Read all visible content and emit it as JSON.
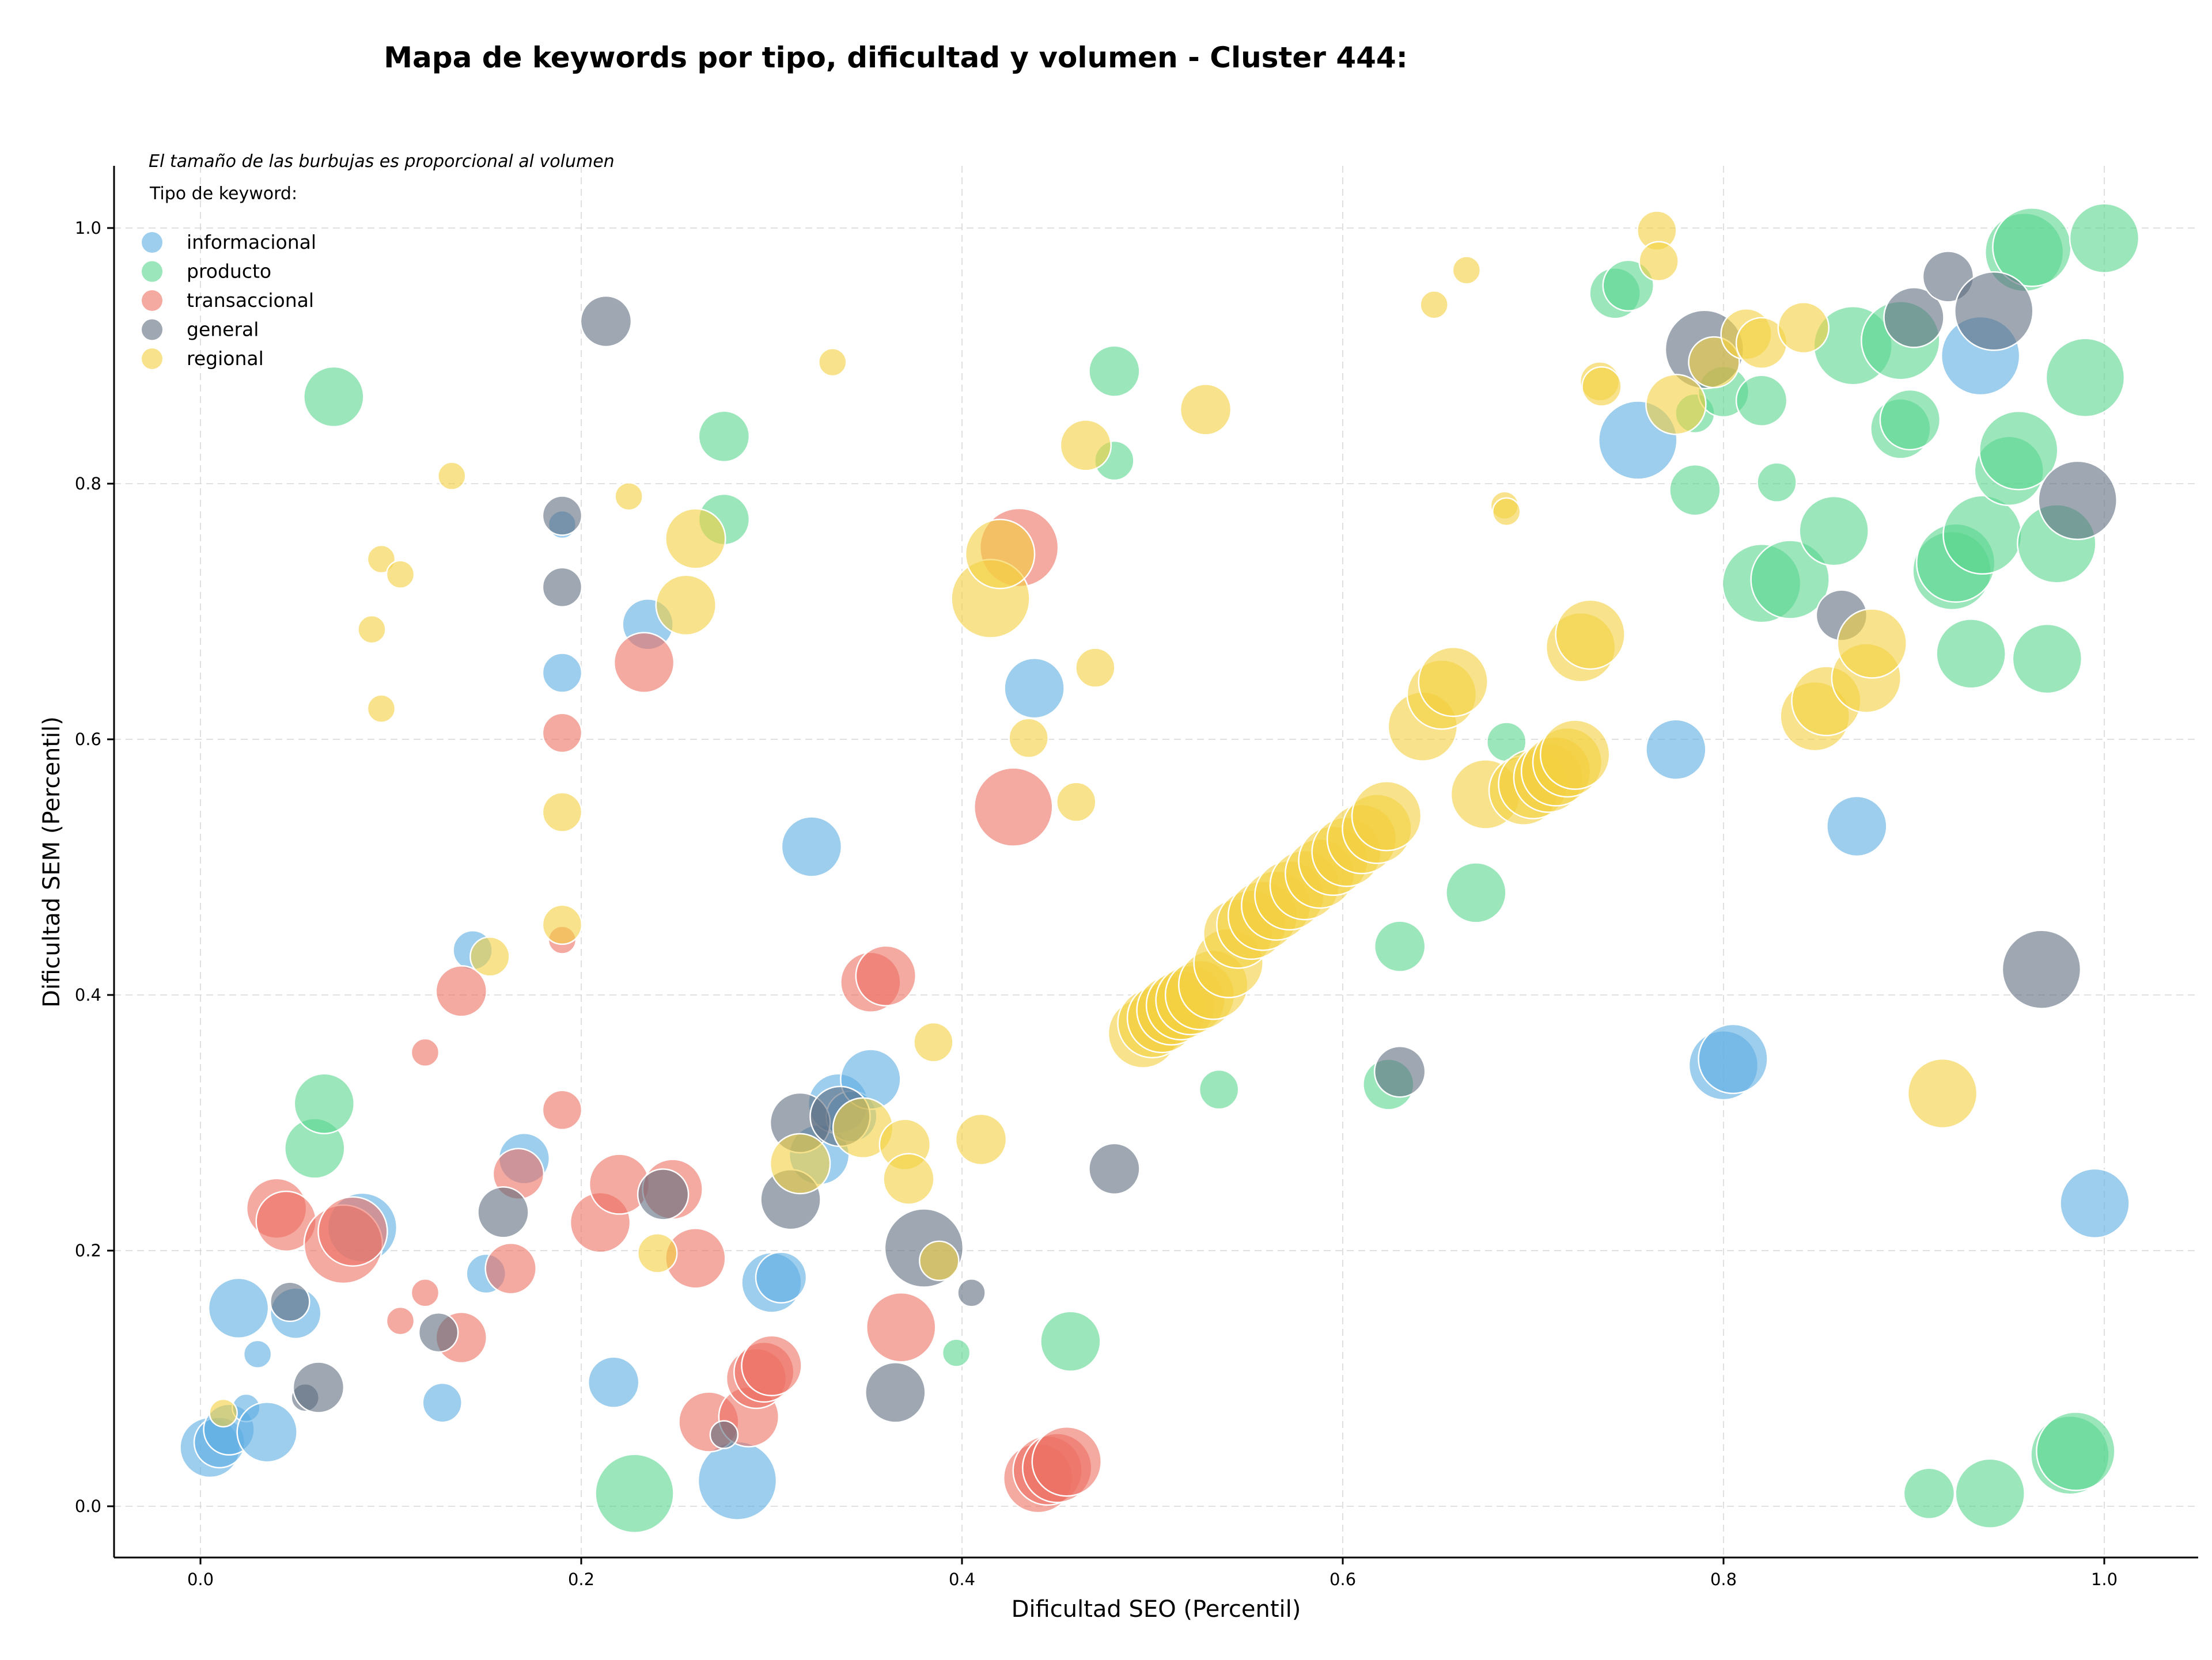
{
  "chart_data": {
    "type": "scatter",
    "title": "Mapa de keywords por tipo, dificultad y volumen - Cluster 444:",
    "xlabel": "Dificultad SEO (Percentil)",
    "ylabel": "Dificultad SEM (Percentil)",
    "xlim": [
      -0.045,
      1.05
    ],
    "ylim": [
      -0.04,
      1.05
    ],
    "x_ticks": [
      "0.0",
      "0.2",
      "0.4",
      "0.6",
      "0.8",
      "1.0"
    ],
    "x_tick_values": [
      0,
      0.2,
      0.4,
      0.6,
      0.8,
      1.0
    ],
    "y_ticks": [
      "0.0",
      "0.2",
      "0.4",
      "0.6",
      "0.8",
      "1.0"
    ],
    "y_tick_values": [
      0,
      0.2,
      0.4,
      0.6,
      0.8,
      1.0
    ],
    "grid": true,
    "legend_placement": "top-left",
    "legend_note": "El tamaño de las burbujas es proporcional al volumen",
    "legend_title": "Tipo de keyword:",
    "series": [
      {
        "name": "informacional",
        "color": "#5DADE2",
        "points": [
          [
            0.005,
            0.046,
            4
          ],
          [
            0.01,
            0.05,
            3
          ],
          [
            0.015,
            0.06,
            3
          ],
          [
            0.02,
            0.155,
            4
          ],
          [
            0.024,
            0.077,
            1
          ],
          [
            0.03,
            0.119,
            1
          ],
          [
            0.035,
            0.058,
            4
          ],
          [
            0.05,
            0.151,
            3
          ],
          [
            0.085,
            0.218,
            5
          ],
          [
            0.127,
            0.081,
            2
          ],
          [
            0.143,
            0.435,
            2
          ],
          [
            0.15,
            0.182,
            2
          ],
          [
            0.17,
            0.272,
            3
          ],
          [
            0.19,
            0.768,
            1
          ],
          [
            0.19,
            0.652,
            2
          ],
          [
            0.217,
            0.097,
            3
          ],
          [
            0.235,
            0.69,
            3
          ],
          [
            0.282,
            0.02,
            6
          ],
          [
            0.3,
            0.175,
            4
          ],
          [
            0.305,
            0.179,
            3
          ],
          [
            0.321,
            0.516,
            4
          ],
          [
            0.325,
            0.275,
            4
          ],
          [
            0.335,
            0.315,
            4
          ],
          [
            0.342,
            0.305,
            3
          ],
          [
            0.352,
            0.334,
            4
          ],
          [
            0.438,
            0.64,
            4
          ],
          [
            0.755,
            0.834,
            6
          ],
          [
            0.775,
            0.592,
            4
          ],
          [
            0.8,
            0.345,
            5
          ],
          [
            0.805,
            0.35,
            5
          ],
          [
            0.87,
            0.532,
            4
          ],
          [
            0.935,
            0.9,
            6
          ],
          [
            0.995,
            0.237,
            5
          ]
        ]
      },
      {
        "name": "producto",
        "color": "#58D68D",
        "points": [
          [
            0.06,
            0.28,
            4
          ],
          [
            0.065,
            0.315,
            4
          ],
          [
            0.07,
            0.868,
            4
          ],
          [
            0.228,
            0.01,
            6
          ],
          [
            0.275,
            0.837,
            3
          ],
          [
            0.275,
            0.772,
            3
          ],
          [
            0.397,
            0.12,
            1
          ],
          [
            0.457,
            0.129,
            4
          ],
          [
            0.48,
            0.888,
            3
          ],
          [
            0.48,
            0.818,
            2
          ],
          [
            0.535,
            0.326,
            2
          ],
          [
            0.624,
            0.33,
            3
          ],
          [
            0.63,
            0.438,
            3
          ],
          [
            0.67,
            0.48,
            4
          ],
          [
            0.686,
            0.598,
            2
          ],
          [
            0.743,
            0.949,
            3
          ],
          [
            0.75,
            0.955,
            3
          ],
          [
            0.785,
            0.795,
            3
          ],
          [
            0.785,
            0.855,
            2
          ],
          [
            0.8,
            0.872,
            3
          ],
          [
            0.82,
            0.865,
            3
          ],
          [
            0.82,
            0.722,
            6
          ],
          [
            0.828,
            0.801,
            2
          ],
          [
            0.835,
            0.725,
            6
          ],
          [
            0.858,
            0.763,
            5
          ],
          [
            0.868,
            0.908,
            6
          ],
          [
            0.893,
            0.843,
            4
          ],
          [
            0.898,
            0.85,
            4
          ],
          [
            0.893,
            0.912,
            6
          ],
          [
            0.908,
            0.01,
            3
          ],
          [
            0.92,
            0.732,
            6
          ],
          [
            0.922,
            0.738,
            6
          ],
          [
            0.93,
            0.667,
            5
          ],
          [
            0.936,
            0.76,
            6
          ],
          [
            0.94,
            0.01,
            5
          ],
          [
            0.95,
            0.81,
            5
          ],
          [
            0.955,
            0.826,
            6
          ],
          [
            0.958,
            0.981,
            6
          ],
          [
            0.962,
            0.985,
            6
          ],
          [
            0.97,
            0.663,
            5
          ],
          [
            0.975,
            0.753,
            6
          ],
          [
            0.982,
            0.04,
            6
          ],
          [
            0.985,
            0.043,
            6
          ],
          [
            0.99,
            0.883,
            6
          ],
          [
            1.0,
            0.992,
            5
          ]
        ]
      },
      {
        "name": "transaccional",
        "color": "#EC7063",
        "points": [
          [
            0.04,
            0.233,
            4
          ],
          [
            0.045,
            0.223,
            4
          ],
          [
            0.075,
            0.205,
            6
          ],
          [
            0.08,
            0.215,
            5
          ],
          [
            0.105,
            0.145,
            1
          ],
          [
            0.118,
            0.355,
            1
          ],
          [
            0.118,
            0.167,
            1
          ],
          [
            0.137,
            0.132,
            3
          ],
          [
            0.137,
            0.403,
            3
          ],
          [
            0.163,
            0.186,
            3
          ],
          [
            0.167,
            0.26,
            3
          ],
          [
            0.19,
            0.605,
            2
          ],
          [
            0.19,
            0.443,
            1
          ],
          [
            0.19,
            0.31,
            2
          ],
          [
            0.21,
            0.222,
            4
          ],
          [
            0.22,
            0.252,
            4
          ],
          [
            0.233,
            0.66,
            4
          ],
          [
            0.248,
            0.248,
            4
          ],
          [
            0.26,
            0.194,
            4
          ],
          [
            0.267,
            0.066,
            4
          ],
          [
            0.288,
            0.07,
            4
          ],
          [
            0.292,
            0.1,
            4
          ],
          [
            0.296,
            0.105,
            4
          ],
          [
            0.3,
            0.11,
            4
          ],
          [
            0.352,
            0.41,
            4
          ],
          [
            0.36,
            0.415,
            4
          ],
          [
            0.368,
            0.14,
            5
          ],
          [
            0.427,
            0.547,
            6
          ],
          [
            0.43,
            0.75,
            6
          ],
          [
            0.44,
            0.022,
            5
          ],
          [
            0.445,
            0.028,
            5
          ],
          [
            0.45,
            0.03,
            5
          ],
          [
            0.455,
            0.035,
            5
          ]
        ]
      },
      {
        "name": "general",
        "color": "#5D6D7E",
        "points": [
          [
            0.047,
            0.16,
            2
          ],
          [
            0.055,
            0.085,
            1
          ],
          [
            0.062,
            0.093,
            3
          ],
          [
            0.125,
            0.136,
            2
          ],
          [
            0.159,
            0.23,
            3
          ],
          [
            0.19,
            0.775,
            2
          ],
          [
            0.19,
            0.719,
            2
          ],
          [
            0.213,
            0.927,
            3
          ],
          [
            0.243,
            0.244,
            3
          ],
          [
            0.275,
            0.056,
            1
          ],
          [
            0.31,
            0.24,
            4
          ],
          [
            0.315,
            0.3,
            4
          ],
          [
            0.336,
            0.305,
            4
          ],
          [
            0.365,
            0.089,
            4
          ],
          [
            0.38,
            0.202,
            6
          ],
          [
            0.405,
            0.167,
            1
          ],
          [
            0.48,
            0.264,
            3
          ],
          [
            0.63,
            0.34,
            3
          ],
          [
            0.79,
            0.905,
            6
          ],
          [
            0.862,
            0.697,
            3
          ],
          [
            0.9,
            0.93,
            4
          ],
          [
            0.918,
            0.962,
            3
          ],
          [
            0.942,
            0.935,
            6
          ],
          [
            0.967,
            0.42,
            6
          ],
          [
            0.986,
            0.787,
            6
          ]
        ]
      },
      {
        "name": "regional",
        "color": "#F4D03F",
        "points": [
          [
            0.012,
            0.073,
            1
          ],
          [
            0.09,
            0.686,
            1
          ],
          [
            0.095,
            0.741,
            1
          ],
          [
            0.095,
            0.624,
            1
          ],
          [
            0.105,
            0.729,
            1
          ],
          [
            0.132,
            0.806,
            1
          ],
          [
            0.152,
            0.43,
            2
          ],
          [
            0.19,
            0.543,
            2
          ],
          [
            0.19,
            0.455,
            2
          ],
          [
            0.225,
            0.79,
            1
          ],
          [
            0.24,
            0.198,
            2
          ],
          [
            0.255,
            0.705,
            4
          ],
          [
            0.26,
            0.757,
            4
          ],
          [
            0.315,
            0.268,
            4
          ],
          [
            0.332,
            0.895,
            1
          ],
          [
            0.348,
            0.296,
            4
          ],
          [
            0.37,
            0.283,
            3
          ],
          [
            0.372,
            0.256,
            3
          ],
          [
            0.385,
            0.363,
            2
          ],
          [
            0.388,
            0.192,
            2
          ],
          [
            0.41,
            0.287,
            3
          ],
          [
            0.415,
            0.71,
            6
          ],
          [
            0.42,
            0.745,
            5
          ],
          [
            0.435,
            0.601,
            2
          ],
          [
            0.46,
            0.551,
            2
          ],
          [
            0.465,
            0.83,
            3
          ],
          [
            0.47,
            0.656,
            2
          ],
          [
            0.495,
            0.37,
            5
          ],
          [
            0.5,
            0.378,
            5
          ],
          [
            0.505,
            0.382,
            5
          ],
          [
            0.51,
            0.388,
            5
          ],
          [
            0.515,
            0.392,
            5
          ],
          [
            0.52,
            0.396,
            5
          ],
          [
            0.525,
            0.4,
            5
          ],
          [
            0.528,
            0.858,
            3
          ],
          [
            0.532,
            0.408,
            5
          ],
          [
            0.54,
            0.425,
            5
          ],
          [
            0.545,
            0.448,
            5
          ],
          [
            0.552,
            0.455,
            5
          ],
          [
            0.558,
            0.462,
            5
          ],
          [
            0.565,
            0.47,
            5
          ],
          [
            0.572,
            0.478,
            5
          ],
          [
            0.58,
            0.486,
            5
          ],
          [
            0.588,
            0.495,
            5
          ],
          [
            0.595,
            0.505,
            5
          ],
          [
            0.602,
            0.512,
            5
          ],
          [
            0.61,
            0.522,
            5
          ],
          [
            0.618,
            0.53,
            5
          ],
          [
            0.623,
            0.54,
            5
          ],
          [
            0.642,
            0.61,
            5
          ],
          [
            0.648,
            0.94,
            1
          ],
          [
            0.652,
            0.635,
            5
          ],
          [
            0.658,
            0.645,
            5
          ],
          [
            0.665,
            0.967,
            1
          ],
          [
            0.675,
            0.557,
            5
          ],
          [
            0.685,
            0.783,
            1
          ],
          [
            0.686,
            0.778,
            1
          ],
          [
            0.695,
            0.56,
            5
          ],
          [
            0.7,
            0.565,
            5
          ],
          [
            0.708,
            0.57,
            5
          ],
          [
            0.712,
            0.575,
            5
          ],
          [
            0.718,
            0.582,
            5
          ],
          [
            0.722,
            0.588,
            5
          ],
          [
            0.725,
            0.672,
            5
          ],
          [
            0.73,
            0.682,
            5
          ],
          [
            0.735,
            0.88,
            2
          ],
          [
            0.736,
            0.876,
            2
          ],
          [
            0.765,
            0.998,
            2
          ],
          [
            0.766,
            0.974,
            2
          ],
          [
            0.775,
            0.862,
            4
          ],
          [
            0.795,
            0.895,
            3
          ],
          [
            0.812,
            0.917,
            3
          ],
          [
            0.82,
            0.91,
            3
          ],
          [
            0.842,
            0.922,
            3
          ],
          [
            0.848,
            0.618,
            5
          ],
          [
            0.854,
            0.63,
            5
          ],
          [
            0.875,
            0.648,
            5
          ],
          [
            0.878,
            0.675,
            5
          ],
          [
            0.915,
            0.323,
            5
          ]
        ]
      }
    ]
  }
}
